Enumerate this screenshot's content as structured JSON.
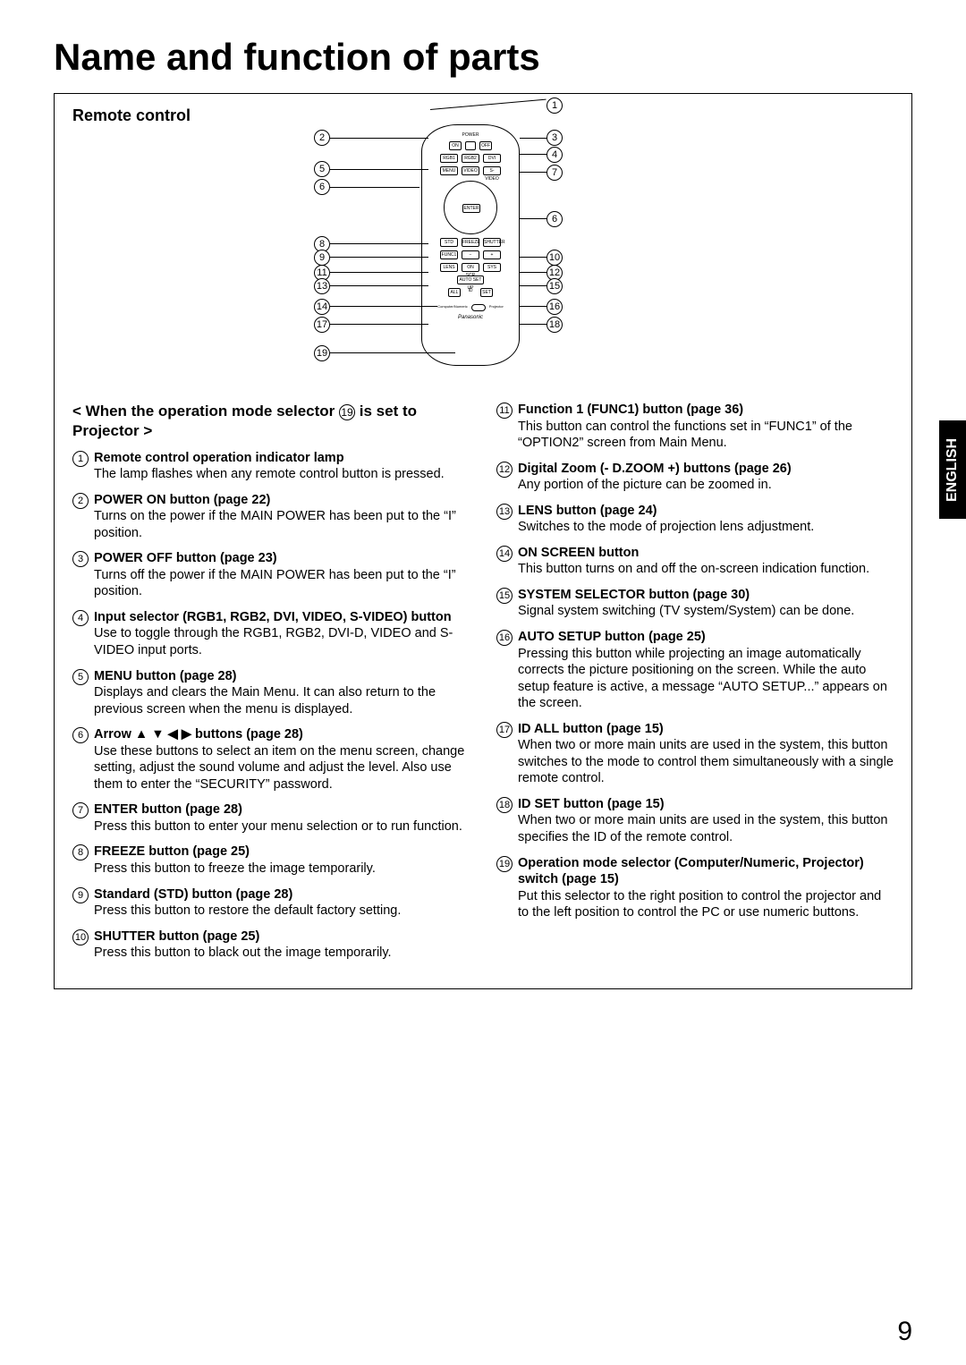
{
  "page_title": "Name and function of parts",
  "section_title": "Remote control",
  "language_tab": "ENGLISH",
  "page_number": "9",
  "subheader_prefix": "< When the operation mode selector ",
  "subheader_ref": "19",
  "subheader_suffix": " is set to Projector >",
  "callouts": {
    "c1": "1",
    "c2": "2",
    "c3": "3",
    "c4": "4",
    "c5": "5",
    "c6a": "6",
    "c6b": "6",
    "c7": "7",
    "c8": "8",
    "c9": "9",
    "c10": "10",
    "c11": "11",
    "c12": "12",
    "c13": "13",
    "c14": "14",
    "c15": "15",
    "c16": "16",
    "c17": "17",
    "c18": "18",
    "c19": "19"
  },
  "left_items": [
    {
      "num": "1",
      "title": "Remote control operation indicator lamp",
      "desc": "The lamp flashes when any remote control button is pressed."
    },
    {
      "num": "2",
      "title": "POWER ON button (page 22)",
      "desc": "Turns on the power if the MAIN POWER has been put to the “I” position."
    },
    {
      "num": "3",
      "title": "POWER OFF button (page 23)",
      "desc": "Turns off the power if the MAIN POWER has been put to the “I” position."
    },
    {
      "num": "4",
      "title": "Input selector (RGB1, RGB2, DVI, VIDEO, S-VIDEO) button",
      "desc": "Use to toggle through the RGB1, RGB2, DVI-D, VIDEO and S-VIDEO input ports."
    },
    {
      "num": "5",
      "title": "MENU button (page 28)",
      "desc": "Displays and clears the Main Menu. It can also return to the previous screen when the menu is displayed."
    },
    {
      "num": "6",
      "title": "Arrow ▲ ▼ ◀ ▶ buttons (page 28)",
      "desc": "Use these buttons to select an item on the menu screen, change setting, adjust the sound volume and adjust the level.\nAlso use them to enter the “SECURITY” password."
    },
    {
      "num": "7",
      "title": "ENTER button (page 28)",
      "desc": "Press this button to enter your menu selection or to run function."
    },
    {
      "num": "8",
      "title": "FREEZE button (page 25)",
      "desc": "Press this button to freeze the image temporarily."
    },
    {
      "num": "9",
      "title": "Standard (STD) button (page 28)",
      "desc": "Press this button to restore the default factory setting."
    },
    {
      "num": "10",
      "title": "SHUTTER button (page 25)",
      "desc": "Press this button to black out the image temporarily."
    }
  ],
  "right_items": [
    {
      "num": "11",
      "title": "Function 1 (FUNC1) button (page 36)",
      "desc": "This button can control the functions set in “FUNC1” of the “OPTION2” screen from Main Menu."
    },
    {
      "num": "12",
      "title": "Digital Zoom (- D.ZOOM +) buttons (page 26)",
      "desc": "Any portion of the picture can be zoomed in."
    },
    {
      "num": "13",
      "title": "LENS button (page 24)",
      "desc": "Switches to the mode of projection lens adjustment."
    },
    {
      "num": "14",
      "title": "ON SCREEN button",
      "desc": "This button turns on and off the on-screen indication function."
    },
    {
      "num": "15",
      "title": "SYSTEM SELECTOR button  (page 30)",
      "desc": "Signal system switching (TV system/System) can be done."
    },
    {
      "num": "16",
      "title": "AUTO SETUP button (page 25)",
      "desc": "Pressing this button while projecting an image automatically corrects the picture positioning on the screen. While the auto setup feature is active, a message “AUTO SETUP...” appears on the screen."
    },
    {
      "num": "17",
      "title": "ID ALL button (page 15)",
      "desc": "When two or more main units are used in the system, this button switches to the mode to control them simultaneously with a single remote control."
    },
    {
      "num": "18",
      "title": "ID SET button (page 15)",
      "desc": "When two or more main units are used in the system, this button specifies the ID of the remote control."
    },
    {
      "num": "19",
      "title": "Operation mode selector (Computer/Numeric, Projector) switch (page 15)",
      "desc": "Put this selector to the right position to control the projector and to the left position to control the PC or use numeric buttons."
    }
  ],
  "remote_labels": {
    "power": "POWER",
    "rgb1": "RGB1",
    "rgb2": "RGB2",
    "dvi": "DVI",
    "menu": "MENU",
    "video": "VIDEO",
    "svideo": "S-VIDEO",
    "enter": "ENTER",
    "std": "STD",
    "freeze": "FREEZE",
    "shutter": "SHUTTER",
    "func1": "FUNC1",
    "dzoom": "D.ZOOM",
    "lens": "LENS",
    "onscreen": "ON SCREEN",
    "system": "SYSTEM",
    "auto": "AUTO SET UP",
    "all": "ALL",
    "id": "ID",
    "set": "SET",
    "computer": "Computer/Numeric",
    "projector": "Projector",
    "brand": "Panasonic"
  }
}
